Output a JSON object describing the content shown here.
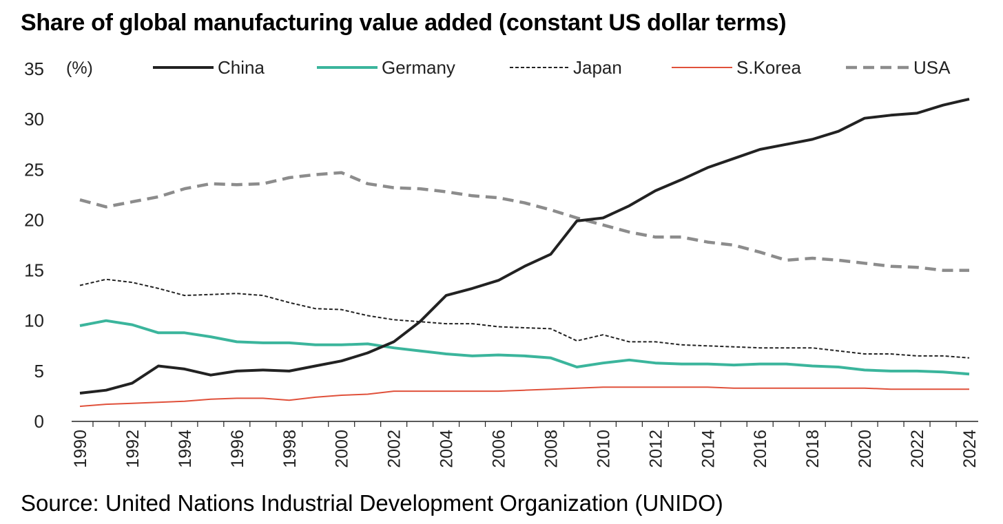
{
  "title": "Share of global manufacturing value added (constant US dollar terms)",
  "source": "Source: United Nations Industrial Development Organization (UNIDO)",
  "chart_data": {
    "type": "line",
    "title": "Share of global manufacturing value added (constant US dollar terms)",
    "unit_label": "(%)",
    "xlabel": "",
    "ylabel": "",
    "ylim": [
      0,
      35
    ],
    "yticks": [
      0,
      5,
      10,
      15,
      20,
      25,
      30,
      35
    ],
    "xlim": [
      1990,
      2024
    ],
    "xticks": [
      1990,
      1992,
      1994,
      1996,
      1998,
      2000,
      2002,
      2004,
      2006,
      2008,
      2010,
      2012,
      2014,
      2016,
      2018,
      2020,
      2022,
      2024
    ],
    "grid": false,
    "legend": "top",
    "x": [
      1990,
      1991,
      1992,
      1993,
      1994,
      1995,
      1996,
      1997,
      1998,
      1999,
      2000,
      2001,
      2002,
      2003,
      2004,
      2005,
      2006,
      2007,
      2008,
      2009,
      2010,
      2011,
      2012,
      2013,
      2014,
      2015,
      2016,
      2017,
      2018,
      2019,
      2020,
      2021,
      2022,
      2023,
      2024
    ],
    "series": [
      {
        "name": "China",
        "color": "#222222",
        "style": "solid-thick",
        "values": [
          2.8,
          3.1,
          3.8,
          5.5,
          5.2,
          4.6,
          5.0,
          5.1,
          5.0,
          5.5,
          6.0,
          6.8,
          7.9,
          9.9,
          12.5,
          13.2,
          14.0,
          15.4,
          16.6,
          19.9,
          20.2,
          21.4,
          22.9,
          24.0,
          25.2,
          26.1,
          27.0,
          27.5,
          28.0,
          28.8,
          30.1,
          30.4,
          30.6,
          31.4,
          32.0
        ]
      },
      {
        "name": "Germany",
        "color": "#3bb59c",
        "style": "solid-thick",
        "values": [
          9.5,
          10.0,
          9.6,
          8.8,
          8.8,
          8.4,
          7.9,
          7.8,
          7.8,
          7.6,
          7.6,
          7.7,
          7.3,
          7.0,
          6.7,
          6.5,
          6.6,
          6.5,
          6.3,
          5.4,
          5.8,
          6.1,
          5.8,
          5.7,
          5.7,
          5.6,
          5.7,
          5.7,
          5.5,
          5.4,
          5.1,
          5.0,
          5.0,
          4.9,
          4.7
        ]
      },
      {
        "name": "Japan",
        "color": "#222222",
        "style": "dotted",
        "values": [
          13.5,
          14.1,
          13.8,
          13.2,
          12.5,
          12.6,
          12.7,
          12.5,
          11.8,
          11.2,
          11.1,
          10.5,
          10.1,
          9.9,
          9.7,
          9.7,
          9.4,
          9.3,
          9.2,
          8.0,
          8.6,
          7.9,
          7.9,
          7.6,
          7.5,
          7.4,
          7.3,
          7.3,
          7.3,
          7.0,
          6.7,
          6.7,
          6.5,
          6.5,
          6.3
        ]
      },
      {
        "name": "S.Korea",
        "color": "#e0503a",
        "style": "solid-thin",
        "values": [
          1.5,
          1.7,
          1.8,
          1.9,
          2.0,
          2.2,
          2.3,
          2.3,
          2.1,
          2.4,
          2.6,
          2.7,
          3.0,
          3.0,
          3.0,
          3.0,
          3.0,
          3.1,
          3.2,
          3.3,
          3.4,
          3.4,
          3.4,
          3.4,
          3.4,
          3.3,
          3.3,
          3.3,
          3.3,
          3.3,
          3.3,
          3.2,
          3.2,
          3.2,
          3.2
        ]
      },
      {
        "name": "USA",
        "color": "#8c8c8c",
        "style": "dashed-thick",
        "values": [
          22.0,
          21.3,
          21.8,
          22.3,
          23.1,
          23.6,
          23.5,
          23.6,
          24.2,
          24.5,
          24.7,
          23.6,
          23.2,
          23.1,
          22.8,
          22.4,
          22.2,
          21.7,
          21.0,
          20.2,
          19.5,
          18.8,
          18.3,
          18.3,
          17.8,
          17.5,
          16.8,
          16.0,
          16.2,
          16.0,
          15.7,
          15.4,
          15.3,
          15.0,
          15.0
        ]
      }
    ]
  }
}
